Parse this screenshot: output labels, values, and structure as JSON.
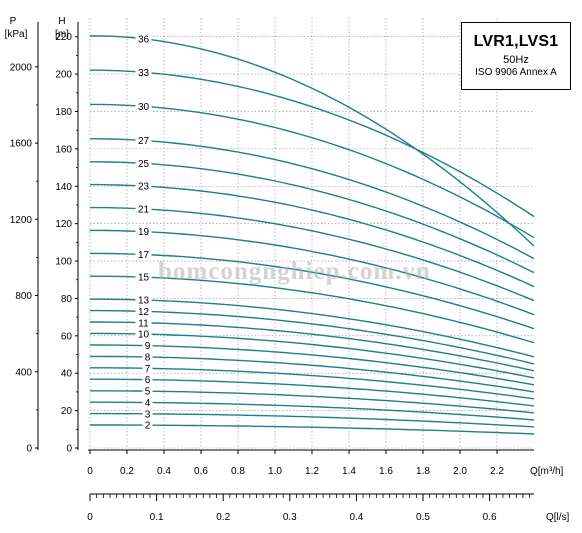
{
  "title": {
    "main": "LVR1,LVS1",
    "freq": "50Hz",
    "standard": "ISO 9906 Annex A"
  },
  "watermark": "bomcongnghiep.com.vn",
  "colors": {
    "curve": "#1f7f86",
    "grid": "#8a8a8a",
    "axis": "#000000"
  },
  "chart_data": {
    "type": "line",
    "left_axis": {
      "unit_line1": "P",
      "unit_line2": "[kPa]",
      "ticks": [
        "0",
        "400",
        "800",
        "1200",
        "1600",
        "2000"
      ]
    },
    "y_axis": {
      "unit_line1": "H",
      "unit_line2": "[m]",
      "range": [
        0,
        230
      ],
      "ticks": [
        "0",
        "20",
        "40",
        "60",
        "80",
        "100",
        "120",
        "140",
        "160",
        "180",
        "200",
        "220"
      ]
    },
    "x_axis": {
      "label": "Q[m³/h]",
      "range": [
        0,
        2.4
      ],
      "ticks": [
        "0",
        "0.2",
        "0.4",
        "0.6",
        "0.8",
        "1.0",
        "1.2",
        "1.4",
        "1.6",
        "1.8",
        "2.0",
        "2.2"
      ]
    },
    "x2_axis": {
      "label": "Q[l/s]",
      "ticks": [
        "0",
        "0.1",
        "0.2",
        "0.3",
        "0.4",
        "0.5",
        "0.6"
      ]
    },
    "series": [
      {
        "name": "2",
        "shutoff": 12.3,
        "end": 7.5
      },
      {
        "name": "3",
        "shutoff": 18.4,
        "end": 11.3
      },
      {
        "name": "4",
        "shutoff": 24.5,
        "end": 15.0
      },
      {
        "name": "5",
        "shutoff": 30.6,
        "end": 18.8
      },
      {
        "name": "6",
        "shutoff": 36.8,
        "end": 22.5
      },
      {
        "name": "7",
        "shutoff": 42.9,
        "end": 26.3
      },
      {
        "name": "8",
        "shutoff": 49.0,
        "end": 30.0
      },
      {
        "name": "9",
        "shutoff": 55.1,
        "end": 33.8
      },
      {
        "name": "10",
        "shutoff": 61.3,
        "end": 37.5
      },
      {
        "name": "11",
        "shutoff": 67.4,
        "end": 41.3
      },
      {
        "name": "12",
        "shutoff": 73.5,
        "end": 45.0
      },
      {
        "name": "13",
        "shutoff": 79.6,
        "end": 48.8
      },
      {
        "name": "15",
        "shutoff": 91.9,
        "end": 56.3
      },
      {
        "name": "17",
        "shutoff": 104.1,
        "end": 63.8
      },
      {
        "name": "19",
        "shutoff": 116.4,
        "end": 71.3
      },
      {
        "name": "21",
        "shutoff": 128.6,
        "end": 78.8
      },
      {
        "name": "23",
        "shutoff": 140.9,
        "end": 86.3
      },
      {
        "name": "25",
        "shutoff": 153.1,
        "end": 93.8
      },
      {
        "name": "27",
        "shutoff": 165.4,
        "end": 101.3
      },
      {
        "name": "30",
        "shutoff": 183.8,
        "end": 112.5
      },
      {
        "name": "33",
        "shutoff": 202.1,
        "end": 123.8
      },
      {
        "name": "36",
        "shutoff": 220.5,
        "end": 108.0
      }
    ],
    "labeled_curves": [
      "2",
      "3",
      "4",
      "5",
      "6",
      "7",
      "8",
      "9",
      "10",
      "11",
      "12",
      "13",
      "15",
      "17",
      "19",
      "21",
      "23",
      "25",
      "27",
      "30",
      "33",
      "36"
    ],
    "grid": true
  }
}
